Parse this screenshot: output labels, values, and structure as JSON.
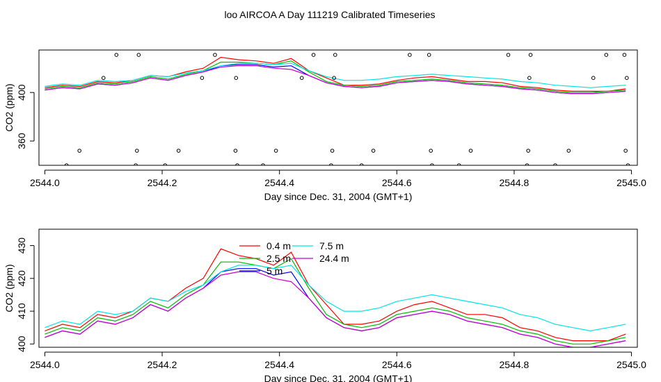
{
  "title": "loo AIRCOA A  Day 111219  Calibrated Timeseries",
  "chart_data": [
    {
      "type": "scatter",
      "xlabel": "Day since Dec. 31, 2004 (GMT+1)",
      "ylabel": "CO2 (ppm)",
      "xlim": [
        2543.99,
        2545.01
      ],
      "ylim": [
        340,
        435
      ],
      "xticks": [
        "2544.0",
        "2544.2",
        "2544.4",
        "2544.6",
        "2544.8",
        "2545.0"
      ],
      "yticks": [
        "360",
        "400"
      ],
      "series_colors": [
        "#ff0000",
        "#00bb00",
        "#0000ff",
        "#00e5e5",
        "#cc00cc"
      ],
      "line_x": [
        2544.0,
        2544.03,
        2544.06,
        2544.09,
        2544.12,
        2544.15,
        2544.18,
        2544.21,
        2544.24,
        2544.27,
        2544.3,
        2544.33,
        2544.36,
        2544.39,
        2544.42,
        2544.45,
        2544.48,
        2544.51,
        2544.54,
        2544.57,
        2544.6,
        2544.63,
        2544.66,
        2544.69,
        2544.72,
        2544.75,
        2544.78,
        2544.81,
        2544.84,
        2544.87,
        2544.9,
        2544.93,
        2544.96,
        2544.99
      ],
      "lines": [
        [
          404,
          406,
          405,
          409,
          408,
          410,
          414,
          413,
          417,
          420,
          429,
          427,
          426,
          424,
          428,
          418,
          412,
          406,
          406,
          407,
          410,
          412,
          413,
          411,
          409,
          409,
          408,
          405,
          404,
          402,
          401,
          401,
          401,
          403
        ],
        [
          403,
          405,
          404,
          408,
          407,
          409,
          413,
          411,
          415,
          418,
          425,
          425,
          424,
          423,
          426,
          417,
          409,
          406,
          405,
          406,
          409,
          410,
          411,
          410,
          408,
          407,
          406,
          404,
          403,
          401,
          400,
          400,
          401,
          402
        ],
        [
          402,
          404,
          403,
          407,
          406,
          408,
          412,
          410,
          414,
          417,
          422,
          423,
          423,
          421,
          422,
          414,
          408,
          405,
          404,
          405,
          408,
          409,
          410,
          409,
          407,
          406,
          405,
          403,
          402,
          400,
          399,
          399,
          400,
          401
        ],
        [
          405,
          407,
          406,
          410,
          409,
          410,
          414,
          413,
          416,
          418,
          422,
          424,
          424,
          423,
          424,
          418,
          413,
          410,
          410,
          411,
          413,
          414,
          415,
          414,
          413,
          412,
          411,
          409,
          408,
          406,
          405,
          404,
          405,
          406
        ],
        [
          402,
          404,
          403,
          407,
          406,
          408,
          412,
          410,
          414,
          417,
          421,
          422,
          422,
          420,
          419,
          414,
          408,
          405,
          404,
          405,
          408,
          409,
          410,
          409,
          407,
          406,
          405,
          403,
          402,
          400,
          399,
          399,
          400,
          401
        ]
      ],
      "points": [
        {
          "x": 2544.037,
          "y": 340
        },
        {
          "x": 2544.059,
          "y": 352
        },
        {
          "x": 2544.1,
          "y": 412
        },
        {
          "x": 2544.122,
          "y": 431
        },
        {
          "x": 2544.155,
          "y": 340
        },
        {
          "x": 2544.157,
          "y": 352
        },
        {
          "x": 2544.16,
          "y": 431
        },
        {
          "x": 2544.205,
          "y": 340
        },
        {
          "x": 2544.228,
          "y": 352
        },
        {
          "x": 2544.268,
          "y": 412
        },
        {
          "x": 2544.29,
          "y": 431
        },
        {
          "x": 2544.325,
          "y": 352
        },
        {
          "x": 2544.326,
          "y": 412
        },
        {
          "x": 2544.328,
          "y": 340
        },
        {
          "x": 2544.372,
          "y": 340
        },
        {
          "x": 2544.394,
          "y": 352
        },
        {
          "x": 2544.438,
          "y": 412
        },
        {
          "x": 2544.458,
          "y": 431
        },
        {
          "x": 2544.488,
          "y": 340
        },
        {
          "x": 2544.49,
          "y": 352
        },
        {
          "x": 2544.493,
          "y": 412
        },
        {
          "x": 2544.495,
          "y": 431
        },
        {
          "x": 2544.54,
          "y": 340
        },
        {
          "x": 2544.56,
          "y": 352
        },
        {
          "x": 2544.622,
          "y": 431
        },
        {
          "x": 2544.655,
          "y": 431
        },
        {
          "x": 2544.658,
          "y": 352
        },
        {
          "x": 2544.66,
          "y": 340
        },
        {
          "x": 2544.706,
          "y": 340
        },
        {
          "x": 2544.726,
          "y": 352
        },
        {
          "x": 2544.79,
          "y": 431
        },
        {
          "x": 2544.822,
          "y": 340
        },
        {
          "x": 2544.824,
          "y": 352
        },
        {
          "x": 2544.826,
          "y": 412
        },
        {
          "x": 2544.828,
          "y": 431
        },
        {
          "x": 2544.87,
          "y": 340
        },
        {
          "x": 2544.893,
          "y": 352
        },
        {
          "x": 2544.935,
          "y": 412
        },
        {
          "x": 2544.957,
          "y": 431
        },
        {
          "x": 2544.988,
          "y": 431
        },
        {
          "x": 2544.99,
          "y": 352
        },
        {
          "x": 2544.992,
          "y": 412
        },
        {
          "x": 2544.994,
          "y": 340
        }
      ]
    },
    {
      "type": "line",
      "xlabel": "Day since Dec. 31, 2004 (GMT+1)",
      "ylabel": "CO2 (ppm)",
      "xlim": [
        2543.99,
        2545.01
      ],
      "ylim": [
        399,
        435
      ],
      "xticks": [
        "2544.0",
        "2544.2",
        "2544.4",
        "2544.6",
        "2544.8",
        "2545.0"
      ],
      "yticks": [
        "400",
        "410",
        "420",
        "430"
      ],
      "legend": "top-center",
      "x": [
        2544.0,
        2544.03,
        2544.06,
        2544.09,
        2544.12,
        2544.15,
        2544.18,
        2544.21,
        2544.24,
        2544.27,
        2544.3,
        2544.33,
        2544.36,
        2544.39,
        2544.42,
        2544.45,
        2544.48,
        2544.51,
        2544.54,
        2544.57,
        2544.6,
        2544.63,
        2544.66,
        2544.69,
        2544.72,
        2544.75,
        2544.78,
        2544.81,
        2544.84,
        2544.87,
        2544.9,
        2544.93,
        2544.96,
        2544.99
      ],
      "series": [
        {
          "name": "0.4 m",
          "color": "#ff0000",
          "values": [
            404,
            406,
            405,
            409,
            408,
            410,
            414,
            413,
            417,
            420,
            429,
            427,
            426,
            424,
            428,
            418,
            412,
            406,
            406,
            407,
            410,
            412,
            413,
            411,
            409,
            409,
            408,
            405,
            404,
            402,
            401,
            401,
            401,
            403
          ]
        },
        {
          "name": "2.5 m",
          "color": "#00bb00",
          "values": [
            403,
            405,
            404,
            408,
            407,
            409,
            413,
            411,
            415,
            418,
            425,
            425,
            424,
            423,
            426,
            417,
            409,
            406,
            405,
            406,
            409,
            410,
            411,
            410,
            408,
            407,
            406,
            404,
            403,
            401,
            400,
            400,
            401,
            402
          ]
        },
        {
          "name": "5 m",
          "color": "#0000ff",
          "values": [
            402,
            404,
            403,
            407,
            406,
            408,
            412,
            410,
            414,
            417,
            422,
            423,
            423,
            421,
            422,
            414,
            408,
            405,
            404,
            405,
            408,
            409,
            410,
            409,
            407,
            406,
            405,
            403,
            402,
            400,
            399,
            399,
            400,
            401
          ]
        },
        {
          "name": "7.5 m",
          "color": "#00e5e5",
          "values": [
            405,
            407,
            406,
            410,
            409,
            410,
            414,
            413,
            416,
            418,
            422,
            424,
            424,
            423,
            424,
            418,
            413,
            410,
            410,
            411,
            413,
            414,
            415,
            414,
            413,
            412,
            411,
            409,
            408,
            406,
            405,
            404,
            405,
            406
          ]
        },
        {
          "name": "24.4 m",
          "color": "#cc00cc",
          "values": [
            402,
            404,
            403,
            407,
            406,
            408,
            412,
            410,
            414,
            417,
            421,
            422,
            422,
            420,
            419,
            414,
            408,
            405,
            404,
            405,
            408,
            409,
            410,
            409,
            407,
            406,
            405,
            403,
            402,
            400,
            399,
            399,
            400,
            401
          ]
        }
      ]
    }
  ]
}
